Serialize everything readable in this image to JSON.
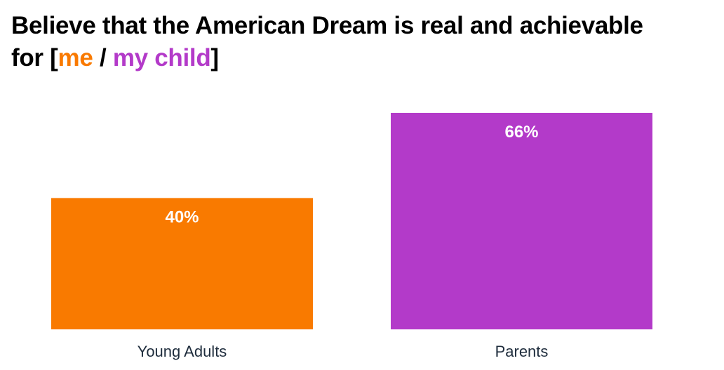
{
  "title": {
    "line1": "Believe that the American Dream is real and achievable",
    "prefix": "for [",
    "highlight_me": "me",
    "separator": " / ",
    "highlight_child": "my child",
    "suffix": "]"
  },
  "colors": {
    "me": "#F97A00",
    "my_child": "#B33AC9",
    "label_text": "#FFFFFF",
    "category_text": "#1F2D3D"
  },
  "chart_data": {
    "type": "bar",
    "categories": [
      "Young Adults",
      "Parents"
    ],
    "values": [
      40,
      66
    ],
    "value_labels": [
      "40%",
      "66%"
    ],
    "bar_colors": [
      "#F97A00",
      "#B33AC9"
    ],
    "ylim": [
      0,
      66
    ],
    "grid": false,
    "xlabel": "",
    "ylabel": ""
  }
}
